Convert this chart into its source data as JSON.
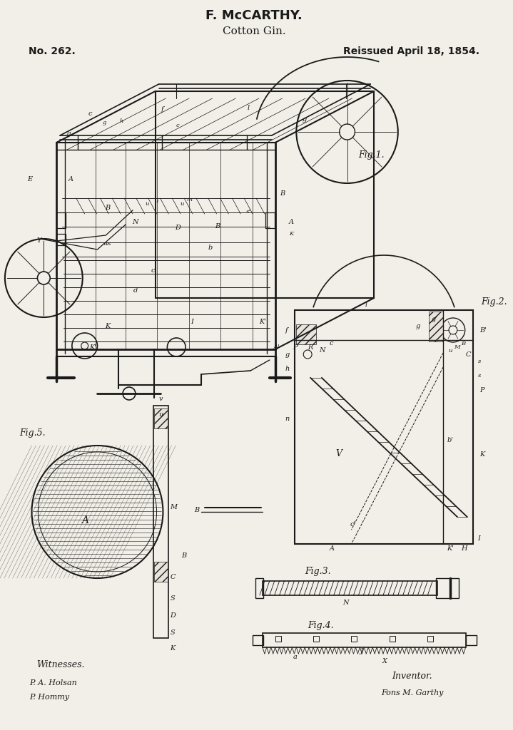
{
  "title_line1": "F. McCARTHY.",
  "title_line2": "Cotton Gin.",
  "patent_no": "No. 262.",
  "reissued": "Reissued April 18, 1854.",
  "fig1_label": "Fig.1.",
  "fig2_label": "Fig.2.",
  "fig3_label": "Fig.3.",
  "fig4_label": "Fig.4.",
  "fig5_label": "Fig.5.",
  "witnesses_label": "Witnesses.",
  "witness1": "P. A. Holsan",
  "witness2": "P. Hommy",
  "inventor_label": "Inventor.",
  "inventor_name": "Fons M. Garthy",
  "bg_color": "#f2efe8",
  "line_color": "#1a1a1a"
}
